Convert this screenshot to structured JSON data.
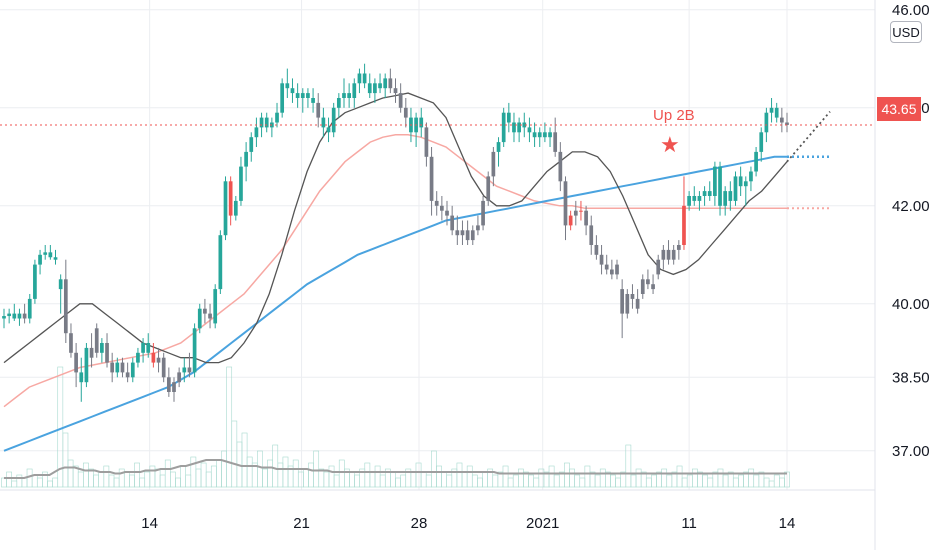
{
  "chart_data": {
    "type": "candlestick",
    "currency": "USD",
    "last_price": "43.65",
    "annotation": "Up 2B",
    "y_ticks": [
      "46.00",
      "44.00",
      "42.00",
      "40.00",
      "38.50",
      "37.00"
    ],
    "x_ticks": [
      "14",
      "21",
      "28",
      "2021",
      "11",
      "14"
    ],
    "ylim": [
      36.2,
      46.2
    ],
    "colors": {
      "up": "#26a69a",
      "down": "#787b86",
      "signal": "#ef5350",
      "ma_short": "#555555",
      "ma_mid": "#f7a8a3",
      "ma_long": "#4aa3df",
      "grid": "#eceef1",
      "price_line": "#ef5350"
    },
    "candles": [
      [
        39.7,
        39.9,
        39.5,
        39.75,
        "up"
      ],
      [
        39.75,
        39.9,
        39.6,
        39.8,
        "up"
      ],
      [
        39.8,
        40.0,
        39.65,
        39.7,
        "up"
      ],
      [
        39.7,
        39.9,
        39.55,
        39.8,
        "up"
      ],
      [
        39.8,
        40.0,
        39.6,
        39.7,
        "down"
      ],
      [
        39.7,
        40.2,
        39.6,
        40.1,
        "up"
      ],
      [
        40.1,
        40.9,
        40.0,
        40.8,
        "up"
      ],
      [
        40.8,
        41.1,
        40.6,
        41.0,
        "up"
      ],
      [
        41.0,
        41.2,
        40.9,
        41.05,
        "up"
      ],
      [
        41.05,
        41.2,
        40.9,
        40.95,
        "up"
      ],
      [
        40.95,
        41.1,
        40.8,
        40.9,
        "up"
      ],
      [
        40.3,
        40.6,
        39.8,
        40.5,
        "up"
      ],
      [
        40.5,
        40.9,
        39.2,
        39.4,
        "down"
      ],
      [
        39.4,
        39.6,
        38.9,
        39.0,
        "down"
      ],
      [
        39.0,
        39.2,
        38.3,
        38.6,
        "down"
      ],
      [
        38.6,
        38.9,
        38.0,
        38.4,
        "up"
      ],
      [
        38.4,
        39.2,
        38.3,
        39.1,
        "up"
      ],
      [
        39.1,
        39.4,
        38.7,
        38.9,
        "down"
      ],
      [
        39.5,
        39.6,
        38.9,
        39.0,
        "down"
      ],
      [
        39.0,
        39.3,
        38.8,
        39.2,
        "up"
      ],
      [
        39.2,
        39.4,
        38.7,
        38.8,
        "down"
      ],
      [
        38.8,
        39.0,
        38.4,
        38.6,
        "down"
      ],
      [
        38.6,
        38.9,
        38.5,
        38.8,
        "up"
      ],
      [
        38.8,
        38.9,
        38.5,
        38.6,
        "down"
      ],
      [
        38.6,
        38.8,
        38.4,
        38.5,
        "down"
      ],
      [
        38.5,
        38.9,
        38.4,
        38.8,
        "up"
      ],
      [
        38.8,
        39.1,
        38.7,
        39.0,
        "up"
      ],
      [
        39.0,
        39.3,
        38.8,
        39.2,
        "up"
      ],
      [
        39.2,
        39.4,
        38.9,
        39.0,
        "up"
      ],
      [
        39.0,
        39.2,
        38.7,
        38.8,
        "signal"
      ],
      [
        38.8,
        39.1,
        38.6,
        38.9,
        "down"
      ],
      [
        38.9,
        39.0,
        38.4,
        38.5,
        "down"
      ],
      [
        38.5,
        38.7,
        38.1,
        38.2,
        "down"
      ],
      [
        38.2,
        38.5,
        38.0,
        38.4,
        "down"
      ],
      [
        38.4,
        38.7,
        38.3,
        38.6,
        "down"
      ],
      [
        38.6,
        38.9,
        38.4,
        38.7,
        "up"
      ],
      [
        38.7,
        39.0,
        38.5,
        38.6,
        "down"
      ],
      [
        38.6,
        39.6,
        38.5,
        39.5,
        "up"
      ],
      [
        39.5,
        40.0,
        39.4,
        39.9,
        "up"
      ],
      [
        39.9,
        40.1,
        39.6,
        39.8,
        "down"
      ],
      [
        39.8,
        40.0,
        39.5,
        39.7,
        "down"
      ],
      [
        39.6,
        40.4,
        39.5,
        40.3,
        "up"
      ],
      [
        40.3,
        41.5,
        40.2,
        41.4,
        "up"
      ],
      [
        41.4,
        42.6,
        41.3,
        42.5,
        "up"
      ],
      [
        42.5,
        42.6,
        41.6,
        41.8,
        "signal"
      ],
      [
        41.8,
        42.2,
        41.7,
        42.1,
        "up"
      ],
      [
        42.1,
        43.0,
        42.0,
        42.8,
        "up"
      ],
      [
        42.8,
        43.3,
        42.5,
        43.1,
        "up"
      ],
      [
        43.1,
        43.5,
        42.9,
        43.4,
        "up"
      ],
      [
        43.4,
        43.8,
        43.2,
        43.6,
        "up"
      ],
      [
        43.6,
        43.9,
        43.4,
        43.8,
        "up"
      ],
      [
        43.8,
        43.9,
        43.5,
        43.6,
        "up"
      ],
      [
        43.6,
        43.8,
        43.4,
        43.7,
        "up"
      ],
      [
        43.7,
        44.1,
        43.6,
        43.9,
        "up"
      ],
      [
        43.9,
        44.6,
        43.8,
        44.5,
        "up"
      ],
      [
        44.5,
        44.8,
        44.2,
        44.4,
        "up"
      ],
      [
        44.4,
        44.6,
        44.1,
        44.3,
        "up"
      ],
      [
        44.3,
        44.5,
        44.0,
        44.2,
        "up"
      ],
      [
        44.2,
        44.4,
        43.9,
        44.3,
        "up"
      ],
      [
        44.3,
        44.4,
        44.0,
        44.2,
        "up"
      ],
      [
        44.2,
        44.4,
        43.9,
        44.1,
        "up"
      ],
      [
        44.1,
        44.3,
        43.6,
        43.8,
        "down"
      ],
      [
        43.8,
        44.0,
        43.4,
        43.6,
        "up"
      ],
      [
        43.6,
        43.8,
        43.3,
        43.5,
        "up"
      ],
      [
        43.5,
        44.1,
        43.4,
        44.0,
        "up"
      ],
      [
        44.0,
        44.3,
        43.8,
        44.2,
        "up"
      ],
      [
        44.2,
        44.6,
        44.0,
        44.3,
        "up"
      ],
      [
        44.3,
        44.5,
        44.0,
        44.2,
        "up"
      ],
      [
        44.2,
        44.6,
        44.0,
        44.5,
        "up"
      ],
      [
        44.5,
        44.8,
        44.3,
        44.7,
        "up"
      ],
      [
        44.7,
        44.9,
        44.4,
        44.5,
        "up"
      ],
      [
        44.5,
        44.7,
        44.2,
        44.3,
        "up"
      ],
      [
        44.3,
        44.6,
        44.1,
        44.5,
        "up"
      ],
      [
        44.5,
        44.7,
        44.3,
        44.4,
        "up"
      ],
      [
        44.4,
        44.7,
        44.2,
        44.6,
        "up"
      ],
      [
        44.6,
        44.8,
        44.3,
        44.4,
        "down"
      ],
      [
        44.4,
        44.6,
        44.1,
        44.3,
        "down"
      ],
      [
        44.3,
        44.5,
        43.9,
        44.0,
        "down"
      ],
      [
        44.0,
        44.2,
        43.6,
        43.8,
        "down"
      ],
      [
        43.8,
        44.0,
        43.3,
        43.5,
        "up"
      ],
      [
        43.5,
        43.9,
        43.2,
        43.8,
        "up"
      ],
      [
        43.8,
        44.0,
        43.4,
        43.6,
        "up"
      ],
      [
        43.6,
        43.7,
        42.8,
        43.0,
        "down"
      ],
      [
        43.0,
        43.2,
        41.8,
        42.1,
        "down"
      ],
      [
        42.1,
        42.3,
        41.8,
        42.0,
        "down"
      ],
      [
        42.0,
        42.2,
        41.7,
        41.9,
        "down"
      ],
      [
        41.9,
        42.1,
        41.6,
        41.8,
        "down"
      ],
      [
        41.8,
        42.0,
        41.4,
        41.5,
        "down"
      ],
      [
        41.5,
        41.8,
        41.2,
        41.4,
        "down"
      ],
      [
        41.4,
        41.7,
        41.2,
        41.5,
        "down"
      ],
      [
        41.5,
        41.7,
        41.2,
        41.3,
        "down"
      ],
      [
        41.3,
        41.6,
        41.2,
        41.5,
        "down"
      ],
      [
        41.5,
        41.8,
        41.4,
        41.6,
        "down"
      ],
      [
        41.6,
        42.2,
        41.5,
        42.1,
        "down"
      ],
      [
        42.1,
        42.7,
        42.0,
        42.6,
        "down"
      ],
      [
        42.6,
        43.2,
        42.4,
        43.1,
        "down"
      ],
      [
        43.1,
        43.4,
        42.8,
        43.3,
        "up"
      ],
      [
        43.3,
        44.0,
        43.2,
        43.9,
        "up"
      ],
      [
        43.9,
        44.1,
        43.5,
        43.7,
        "up"
      ],
      [
        43.7,
        43.9,
        43.3,
        43.5,
        "up"
      ],
      [
        43.5,
        43.8,
        43.3,
        43.7,
        "up"
      ],
      [
        43.7,
        43.9,
        43.4,
        43.6,
        "up"
      ],
      [
        43.6,
        43.8,
        43.3,
        43.5,
        "up"
      ],
      [
        43.5,
        43.7,
        43.2,
        43.4,
        "up"
      ],
      [
        43.4,
        43.6,
        43.2,
        43.5,
        "up"
      ],
      [
        43.5,
        43.7,
        43.3,
        43.4,
        "up"
      ],
      [
        43.4,
        43.6,
        43.2,
        43.5,
        "up"
      ],
      [
        43.5,
        43.8,
        43.0,
        43.1,
        "down"
      ],
      [
        43.1,
        43.3,
        42.3,
        42.5,
        "down"
      ],
      [
        42.5,
        42.6,
        41.3,
        41.6,
        "down"
      ],
      [
        41.6,
        41.9,
        41.5,
        41.8,
        "signal"
      ],
      [
        41.8,
        42.1,
        41.6,
        41.9,
        "down"
      ],
      [
        41.9,
        42.1,
        41.7,
        41.9,
        "signal"
      ],
      [
        41.9,
        42.0,
        41.4,
        41.6,
        "down"
      ],
      [
        41.6,
        41.8,
        41.0,
        41.2,
        "down"
      ],
      [
        41.2,
        41.4,
        40.9,
        41.0,
        "down"
      ],
      [
        41.0,
        41.2,
        40.6,
        40.8,
        "down"
      ],
      [
        40.8,
        41.0,
        40.6,
        40.7,
        "down"
      ],
      [
        40.7,
        40.9,
        40.5,
        40.6,
        "down"
      ],
      [
        40.6,
        40.9,
        40.5,
        40.8,
        "down"
      ],
      [
        40.3,
        40.5,
        39.3,
        39.8,
        "down"
      ],
      [
        39.8,
        40.3,
        39.7,
        40.2,
        "down"
      ],
      [
        40.2,
        40.4,
        39.9,
        40.1,
        "down"
      ],
      [
        40.1,
        40.3,
        39.8,
        39.9,
        "down"
      ],
      [
        40.2,
        40.6,
        40.1,
        40.5,
        "down"
      ],
      [
        40.5,
        40.7,
        40.3,
        40.4,
        "down"
      ],
      [
        40.4,
        40.6,
        40.2,
        40.3,
        "down"
      ],
      [
        40.6,
        41.0,
        40.5,
        40.9,
        "down"
      ],
      [
        40.9,
        41.2,
        40.7,
        41.1,
        "down"
      ],
      [
        41.1,
        41.3,
        40.8,
        40.9,
        "down"
      ],
      [
        40.9,
        41.2,
        40.8,
        41.1,
        "down"
      ],
      [
        41.1,
        41.3,
        40.9,
        41.2,
        "down"
      ],
      [
        41.2,
        42.6,
        41.1,
        42.0,
        "signal"
      ],
      [
        42.0,
        42.3,
        41.9,
        42.2,
        "up"
      ],
      [
        42.2,
        42.4,
        42.0,
        42.1,
        "up"
      ],
      [
        42.1,
        42.3,
        41.9,
        42.2,
        "up"
      ],
      [
        42.2,
        42.4,
        42.0,
        42.3,
        "up"
      ],
      [
        42.3,
        42.5,
        42.1,
        42.2,
        "up"
      ],
      [
        42.2,
        42.9,
        42.0,
        42.8,
        "up"
      ],
      [
        42.8,
        42.9,
        41.8,
        42.0,
        "up"
      ],
      [
        42.0,
        42.4,
        41.8,
        42.3,
        "up"
      ],
      [
        42.3,
        42.5,
        41.9,
        42.1,
        "up"
      ],
      [
        42.1,
        42.7,
        42.0,
        42.6,
        "up"
      ],
      [
        42.6,
        42.8,
        42.2,
        42.4,
        "up"
      ],
      [
        42.4,
        42.6,
        42.0,
        42.5,
        "up"
      ],
      [
        42.5,
        42.8,
        42.3,
        42.7,
        "up"
      ],
      [
        42.7,
        43.2,
        42.6,
        43.1,
        "up"
      ],
      [
        43.1,
        43.6,
        42.9,
        43.5,
        "up"
      ],
      [
        43.5,
        44.0,
        43.3,
        43.9,
        "up"
      ],
      [
        43.9,
        44.2,
        43.7,
        44.0,
        "up"
      ],
      [
        44.0,
        44.1,
        43.7,
        43.8,
        "up"
      ],
      [
        43.8,
        44.0,
        43.5,
        43.7,
        "down"
      ],
      [
        43.7,
        43.9,
        43.5,
        43.65,
        "down"
      ]
    ],
    "ma_short": [
      38.8,
      39.0,
      39.2,
      39.4,
      39.6,
      39.8,
      40.0,
      40.0,
      39.8,
      39.6,
      39.4,
      39.2,
      39.1,
      39.0,
      38.9,
      38.9,
      38.8,
      38.8,
      38.9,
      39.2,
      39.6,
      40.2,
      41.0,
      41.9,
      42.7,
      43.3,
      43.7,
      43.9,
      44.0,
      44.1,
      44.2,
      44.25,
      44.3,
      44.2,
      44.1,
      43.8,
      43.2,
      42.6,
      42.2,
      42.0,
      42.0,
      42.1,
      42.4,
      42.7,
      42.9,
      43.1,
      43.1,
      43.0,
      42.7,
      42.2,
      41.6,
      41.0,
      40.7,
      40.6,
      40.7,
      40.9,
      41.2,
      41.5,
      41.8,
      42.1,
      42.3,
      42.6,
      42.9
    ],
    "ma_mid": [
      37.9,
      38.1,
      38.3,
      38.4,
      38.5,
      38.6,
      38.7,
      38.75,
      38.8,
      38.85,
      38.9,
      38.95,
      39.0,
      39.1,
      39.2,
      39.4,
      39.6,
      39.8,
      40.0,
      40.2,
      40.5,
      40.8,
      41.1,
      41.5,
      41.9,
      42.3,
      42.6,
      42.9,
      43.1,
      43.3,
      43.4,
      43.45,
      43.45,
      43.4,
      43.3,
      43.2,
      43.0,
      42.8,
      42.6,
      42.4,
      42.3,
      42.2,
      42.1,
      42.05,
      42.0,
      42.0,
      41.95,
      41.95,
      41.95,
      41.95,
      41.95,
      41.95,
      41.95,
      41.95,
      41.95,
      41.95,
      41.95,
      41.95,
      41.95,
      41.95,
      41.95,
      41.95,
      41.95
    ],
    "ma_long": [
      37.0,
      37.1,
      37.2,
      37.3,
      37.4,
      37.5,
      37.6,
      37.7,
      37.8,
      37.9,
      38.0,
      38.1,
      38.2,
      38.3,
      38.45,
      38.6,
      38.8,
      39.0,
      39.2,
      39.4,
      39.6,
      39.8,
      40.0,
      40.2,
      40.4,
      40.55,
      40.7,
      40.85,
      41.0,
      41.1,
      41.2,
      41.3,
      41.4,
      41.5,
      41.6,
      41.7,
      41.75,
      41.8,
      41.85,
      41.9,
      41.95,
      42.0,
      42.05,
      42.1,
      42.15,
      42.2,
      42.25,
      42.3,
      42.35,
      42.4,
      42.45,
      42.5,
      42.55,
      42.6,
      42.65,
      42.7,
      42.75,
      42.8,
      42.85,
      42.9,
      42.95,
      43.0,
      43.0
    ],
    "volume": [
      3,
      5,
      2,
      4,
      3,
      6,
      4,
      3,
      5,
      2,
      3,
      40,
      18,
      9,
      7,
      5,
      8,
      6,
      4,
      5,
      7,
      4,
      3,
      6,
      5,
      4,
      8,
      3,
      5,
      7,
      6,
      4,
      9,
      5,
      3,
      7,
      4,
      10,
      6,
      8,
      5,
      7,
      9,
      12,
      40,
      22,
      15,
      18,
      10,
      8,
      12,
      6,
      9,
      14,
      8,
      10,
      7,
      9,
      5,
      6,
      8,
      12,
      6,
      5,
      7,
      4,
      9,
      6,
      5,
      4,
      6,
      8,
      5,
      7,
      4,
      6,
      5,
      3,
      4,
      6,
      5,
      8,
      5,
      4,
      12,
      7,
      5,
      4,
      6,
      8,
      5,
      7,
      4,
      3,
      5,
      6,
      4,
      5,
      7,
      3,
      4,
      6,
      5,
      4,
      3,
      6,
      5,
      7,
      4,
      5,
      8,
      6,
      4,
      3,
      7,
      5,
      4,
      6,
      5,
      4,
      3,
      5,
      14,
      4,
      6,
      5,
      3,
      4,
      5,
      6,
      4,
      5,
      7,
      3,
      4,
      6,
      5,
      4,
      3,
      5,
      6,
      4,
      5,
      3,
      4,
      5,
      6,
      4,
      5,
      3,
      2,
      4,
      3,
      5
    ],
    "volume_ma": [
      3,
      3,
      3,
      3,
      3,
      3.5,
      4,
      4,
      4,
      4,
      5,
      6,
      6.5,
      6.5,
      6.5,
      6,
      5.5,
      5.5,
      5.5,
      5,
      5,
      5,
      4.5,
      4.5,
      5,
      5,
      5,
      5,
      5.5,
      5.5,
      5.5,
      6,
      6,
      6,
      6.5,
      7,
      7,
      7.5,
      8,
      8.5,
      9,
      9,
      9,
      9,
      8.5,
      8,
      7.5,
      7,
      7,
      7,
      7,
      6.5,
      6.5,
      6.5,
      6,
      6,
      6,
      6,
      6,
      6,
      6,
      5.5,
      5.5,
      5.5,
      5.5,
      5,
      5,
      5,
      5,
      5,
      5,
      5,
      5,
      5,
      5,
      5,
      5,
      5,
      5,
      5,
      5,
      5,
      5,
      5,
      5,
      5,
      5,
      5,
      5,
      5,
      5,
      5,
      5,
      5,
      5,
      5,
      5,
      5,
      4.5,
      4.5,
      4.5,
      4.5,
      4.5,
      4.5,
      4.5,
      4.5,
      4.5,
      4.5,
      4.5,
      4.5,
      4.5,
      4.5,
      4.5,
      4.5,
      4.5,
      4.5,
      4.5,
      4.5,
      4.5,
      4.5,
      4.5,
      4.5,
      4.5,
      4.5,
      4.5,
      4.5,
      4.5,
      4.5,
      4.5,
      4.5,
      4.5,
      4.5,
      4.5,
      4.5,
      4.5,
      4.5,
      4.5,
      4.5,
      4.5,
      4.5,
      4.5,
      4.5,
      4.5,
      4.5,
      4.5,
      4.5,
      4.5,
      4.5,
      4.5,
      4.5,
      4.5,
      4.5,
      4.5,
      4.5,
      4.5,
      4.5
    ]
  }
}
